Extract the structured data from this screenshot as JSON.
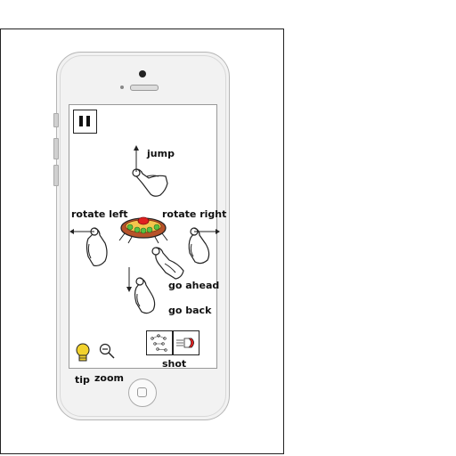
{
  "gestures": {
    "jump": "jump",
    "rotate_left": "rotate left",
    "rotate_right": "rotate right",
    "go_ahead": "go ahead",
    "go_back": "go back"
  },
  "toolbar": {
    "tip": "tip",
    "zoom": "zoom",
    "shot": "shot"
  },
  "icons": {
    "pause": "pause-icon",
    "tip": "lightbulb-icon",
    "zoom": "magnifier-minus-icon",
    "shot_mode_a": "scatter-shot-icon",
    "shot_mode_b": "straight-shot-icon",
    "player": "spaceship-icon"
  },
  "colors": {
    "bulb": "#f2d22e",
    "ship_body": "#b7532a",
    "ship_dome": "#e02020",
    "ship_lights": "#58c142"
  }
}
